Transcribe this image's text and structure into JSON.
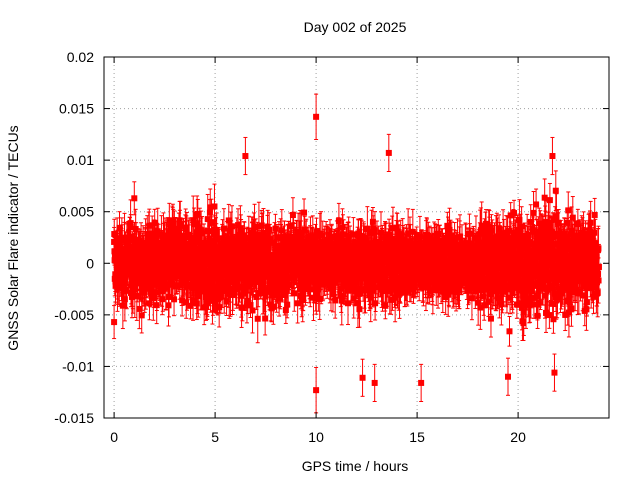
{
  "chart_data": {
    "type": "scatter",
    "title": "Day 002 of 2025",
    "xlabel": "GPS time / hours",
    "ylabel": "GNSS Solar Flare indicator / TECUs",
    "xlim": [
      -0.5,
      24.5
    ],
    "ylim": [
      -0.015,
      0.02
    ],
    "x_ticks": [
      0,
      5,
      10,
      15,
      20
    ],
    "x_tick_labels": [
      "0",
      "5",
      "10",
      "15",
      "20"
    ],
    "y_ticks": [
      -0.015,
      -0.01,
      -0.005,
      0,
      0.005,
      0.01,
      0.015,
      0.02
    ],
    "y_tick_labels": [
      "-0.015",
      "-0.01",
      "-0.005",
      "0",
      "0.005",
      "0.01",
      "0.015",
      "0.02"
    ],
    "grid": true,
    "series_color": "#ff0000",
    "marker": "square",
    "error_bars": true,
    "sampling": {
      "x_start": 0,
      "x_end": 24,
      "approx_points": 2880
    },
    "noted_points": [
      {
        "x": 10.0,
        "y": 0.0142,
        "err": 0.0022
      },
      {
        "x": 10.0,
        "y": -0.0123,
        "err": 0.0022
      },
      {
        "x": 6.5,
        "y": 0.0104,
        "err": 0.0018
      },
      {
        "x": 13.6,
        "y": 0.0107,
        "err": 0.0018
      },
      {
        "x": 15.2,
        "y": -0.0116,
        "err": 0.0018
      },
      {
        "x": 12.9,
        "y": -0.0116,
        "err": 0.0018
      },
      {
        "x": 19.5,
        "y": -0.011,
        "err": 0.0018
      },
      {
        "x": 21.8,
        "y": -0.0106,
        "err": 0.0018
      },
      {
        "x": 12.3,
        "y": -0.0111,
        "err": 0.0018
      },
      {
        "x": 21.7,
        "y": 0.0104,
        "err": 0.0018
      },
      {
        "x": 1.0,
        "y": 0.0063,
        "err": 0.0016
      },
      {
        "x": 0.0,
        "y": -0.0057,
        "err": 0.0016
      }
    ]
  }
}
